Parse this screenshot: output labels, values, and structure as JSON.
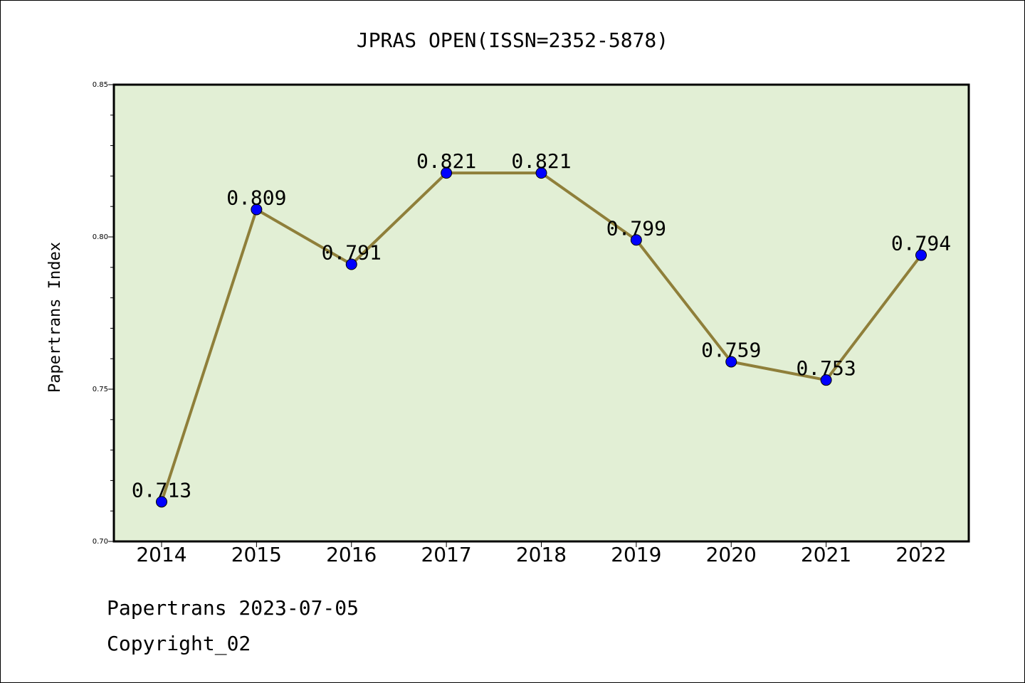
{
  "chart_data": {
    "type": "line",
    "title": "JPRAS OPEN(ISSN=2352-5878)",
    "xlabel": "",
    "ylabel": "Papertrans Index",
    "categories": [
      "2014",
      "2015",
      "2016",
      "2017",
      "2018",
      "2019",
      "2020",
      "2021",
      "2022"
    ],
    "series": [
      {
        "values": [
          0.713,
          0.809,
          0.791,
          0.821,
          0.821,
          0.799,
          0.759,
          0.753,
          0.794
        ],
        "data_labels": [
          "0.713",
          "0.809",
          "0.791",
          "0.821",
          "0.821",
          "0.799",
          "0.759",
          "0.753",
          "0.794"
        ]
      }
    ],
    "ylim": [
      0.7,
      0.85
    ],
    "yticks": [
      "0.70",
      "0.75",
      "0.80",
      "0.85"
    ],
    "grid": false,
    "legend": "none",
    "colors": {
      "plot_background": "#e2efd5",
      "line": "#8f7f3a",
      "marker": "#0000ff"
    }
  },
  "footer": {
    "line1": "Papertrans 2023-07-05",
    "line2": "Copyright_02"
  }
}
